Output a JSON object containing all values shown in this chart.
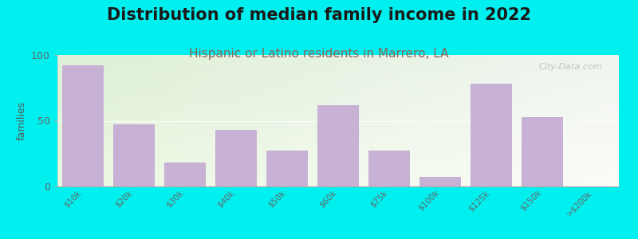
{
  "title": "Distribution of median family income in 2022",
  "subtitle": "Hispanic or Latino residents in Marrero, LA",
  "ylabel": "families",
  "categories": [
    "$10k",
    "$20k",
    "$30k",
    "$40k",
    "$50k",
    "$60k",
    "$75k",
    "$100k",
    "$125k",
    "$150k",
    ">$200k"
  ],
  "values": [
    92,
    47,
    18,
    43,
    27,
    62,
    27,
    7,
    78,
    53,
    0
  ],
  "bar_color": "#c5aed4",
  "background_color": "#00f0f0",
  "plot_bg_color_tl": "#eaf5e0",
  "plot_bg_color_tr": "#f8f8f8",
  "plot_bg_color_bl": "#d8f0d8",
  "plot_bg_color_br": "#f0f8f8",
  "ylim": [
    0,
    100
  ],
  "yticks": [
    0,
    50,
    100
  ],
  "watermark": "City-Data.com",
  "title_fontsize": 15,
  "subtitle_fontsize": 11,
  "subtitle_color": "#886655",
  "ylabel_color": "#555555",
  "tick_color": "#666666",
  "tick_fontsize": 7.5
}
